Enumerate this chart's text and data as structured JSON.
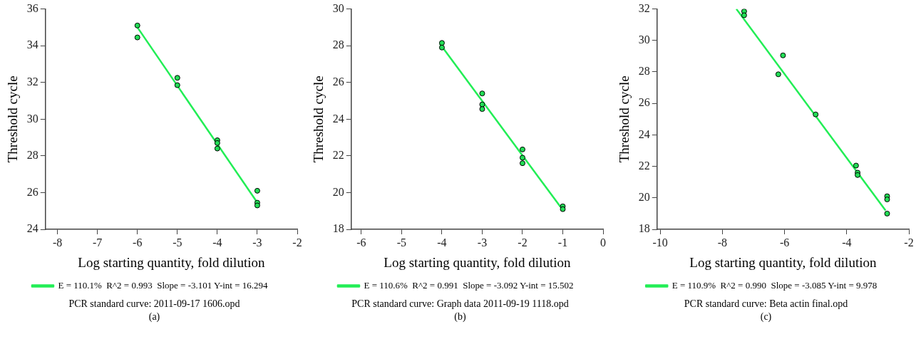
{
  "chart_data": [
    {
      "type": "scatter",
      "xlabel": "Log starting quantity, fold dilution",
      "ylabel": "Threshold cycle",
      "xlim": [
        -8.3,
        -2
      ],
      "xticks": [
        -8,
        -7,
        -6,
        -5,
        -4,
        -3,
        -2
      ],
      "ylim": [
        24,
        36
      ],
      "yticks": [
        24,
        26,
        28,
        30,
        32,
        34,
        36
      ],
      "grid": false,
      "legend": "bottom",
      "series": [
        {
          "color": "#22dd55",
          "marker": "circle",
          "x": [
            -6,
            -6,
            -5,
            -5,
            -4,
            -4,
            -4,
            -3,
            -3,
            -3
          ],
          "values": [
            35.1,
            34.45,
            32.25,
            31.85,
            28.85,
            28.7,
            28.4,
            26.1,
            25.45,
            25.3
          ]
        },
        {
          "type": "line",
          "marker": "none",
          "name": "E = 110.1%  R^2 = 0.993  Slope = -3.101 Y-int = 16.294",
          "color": "#22ee55",
          "x": [
            -6,
            -2.95
          ],
          "values": [
            35.0,
            25.3
          ]
        }
      ],
      "annotations": [
        "PCR standard curve: 2011-09-17 1606.opd",
        "(a)"
      ]
    },
    {
      "type": "scatter",
      "xlabel": "Log starting quantity, fold dilution",
      "ylabel": "Threshold cycle",
      "xlim": [
        -6.25,
        0
      ],
      "xticks": [
        -6,
        -5,
        -4,
        -3,
        -2,
        -1,
        0
      ],
      "ylim": [
        18,
        30
      ],
      "yticks": [
        18,
        20,
        22,
        24,
        26,
        28,
        30
      ],
      "grid": false,
      "legend": "bottom",
      "series": [
        {
          "color": "#22dd55",
          "marker": "circle",
          "x": [
            -4,
            -4,
            -3,
            -3,
            -3,
            -2,
            -2,
            -2,
            -1,
            -1
          ],
          "values": [
            28.15,
            27.9,
            25.4,
            24.8,
            24.55,
            22.35,
            21.9,
            21.6,
            19.25,
            19.1
          ]
        },
        {
          "type": "line",
          "marker": "none",
          "name": "E = 110.6%  R^2 = 0.991  Slope = -3.092 Y-int = 15.502",
          "color": "#22ee55",
          "x": [
            -4.05,
            -1.05
          ],
          "values": [
            28.1,
            19.2
          ]
        }
      ],
      "annotations": [
        "PCR standard curve: Graph data 2011-09-19 1118.opd",
        "(b)"
      ]
    },
    {
      "type": "scatter",
      "xlabel": "Log starting quantity, fold dilution",
      "ylabel": "Threshold cycle",
      "xlim": [
        -10.1,
        -2
      ],
      "xticks": [
        -10,
        -8,
        -6,
        -4,
        -2
      ],
      "ylim": [
        18,
        32
      ],
      "yticks": [
        18,
        20,
        22,
        24,
        26,
        28,
        30,
        32
      ],
      "grid": false,
      "legend": "bottom",
      "series": [
        {
          "color": "#22dd55",
          "marker": "circle",
          "x": [
            -7.3,
            -7.3,
            -6.2,
            -6.05,
            -5,
            -3.7,
            -3.65,
            -3.65,
            -2.7,
            -2.7,
            -2.7
          ],
          "values": [
            31.85,
            31.6,
            27.85,
            29.05,
            25.3,
            22.05,
            21.6,
            21.45,
            20.1,
            19.9,
            19.0
          ]
        },
        {
          "type": "line",
          "marker": "none",
          "name": "E = 110.9%  R^2 = 0.990  Slope = -3.085 Y-int = 9.978",
          "color": "#22ee55",
          "x": [
            -7.55,
            -2.75
          ],
          "values": [
            32.0,
            19.2
          ]
        }
      ],
      "annotations": [
        "PCR standard curve: Beta actin final.opd",
        "(c)"
      ]
    }
  ]
}
